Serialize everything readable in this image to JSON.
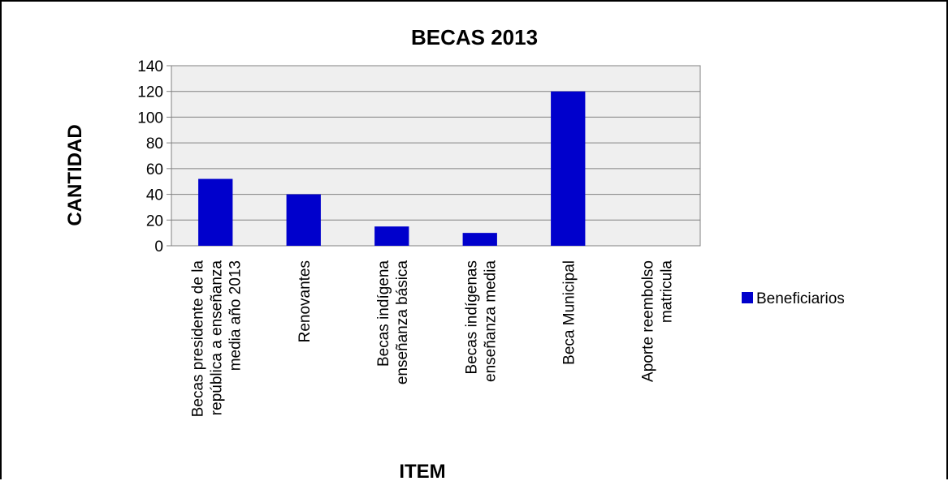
{
  "chart_data": {
    "type": "bar",
    "title": "BECAS 2013",
    "xlabel": "ITEM",
    "ylabel": "CANTIDAD",
    "ylim": [
      0,
      140
    ],
    "yticks": [
      0,
      20,
      40,
      60,
      80,
      100,
      120,
      140
    ],
    "grid": true,
    "legend_position": "right",
    "categories": [
      [
        "Becas presidente de la",
        "república a enseñanza",
        "media año 2013"
      ],
      [
        "Renovantes"
      ],
      [
        "Becas indígena",
        "enseñanza básica"
      ],
      [
        "Becas indígenas",
        "enseñanza media"
      ],
      [
        "Beca Municipal"
      ],
      [
        "Aporte reembolso",
        "matricula"
      ]
    ],
    "series": [
      {
        "name": "Beneficiarios",
        "color": "#0000cc",
        "values": [
          52,
          40,
          15,
          10,
          120,
          0
        ]
      }
    ],
    "plot_background": "#efefef",
    "gridline_color": "#808080"
  }
}
